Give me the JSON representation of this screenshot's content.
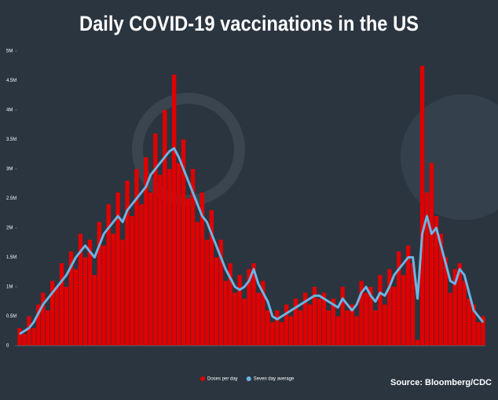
{
  "chart_data": {
    "type": "bar-line",
    "title": "Daily COVID-19 vaccinations in the US",
    "source": "Source: Bloomberg/CDC",
    "categories": [
      null,
      null,
      null,
      null,
      null,
      null,
      null,
      null,
      null,
      null,
      null,
      null,
      null,
      null,
      null,
      null,
      null,
      null,
      null,
      null,
      null,
      null,
      null,
      null,
      null,
      null,
      null,
      null,
      null,
      null,
      null,
      null,
      null,
      null,
      null,
      null,
      null,
      null,
      null,
      null,
      null,
      null,
      null,
      null,
      null,
      null,
      null,
      null,
      null,
      null,
      null,
      null,
      null,
      null,
      null,
      null,
      null,
      null,
      null,
      null,
      null,
      null,
      null,
      null,
      null,
      null,
      null,
      null,
      null,
      null,
      null,
      null,
      null,
      null,
      null,
      null,
      null,
      null,
      null,
      null,
      null,
      null,
      null,
      null,
      null,
      null,
      null,
      null,
      null,
      null,
      null,
      null,
      null,
      null,
      null,
      null,
      null,
      null,
      null,
      null
    ],
    "series": [
      {
        "name": "Doses per day",
        "color": "#e00000",
        "type": "bar",
        "values": [
          0.3,
          0.2,
          0.5,
          0.3,
          0.7,
          0.9,
          0.6,
          1.1,
          1.0,
          1.4,
          1.0,
          1.6,
          1.3,
          1.9,
          1.5,
          1.8,
          1.2,
          2.1,
          1.7,
          2.4,
          1.9,
          2.6,
          1.8,
          2.8,
          2.2,
          3.0,
          2.4,
          3.2,
          2.6,
          3.6,
          2.9,
          4.0,
          3.0,
          4.6,
          3.1,
          3.5,
          2.5,
          3.0,
          2.1,
          2.6,
          1.8,
          2.3,
          1.5,
          1.8,
          1.1,
          1.4,
          0.9,
          1.2,
          0.8,
          1.3,
          1.4,
          0.9,
          1.1,
          0.6,
          0.4,
          0.6,
          0.4,
          0.7,
          0.5,
          0.8,
          0.6,
          0.9,
          0.7,
          1.0,
          0.8,
          0.9,
          0.6,
          0.8,
          0.5,
          1.0,
          0.6,
          0.7,
          0.5,
          1.1,
          0.9,
          1.0,
          0.6,
          1.2,
          0.7,
          1.3,
          1.0,
          1.6,
          1.2,
          1.7,
          1.4,
          0.1,
          4.75,
          2.6,
          3.1,
          2.2,
          1.9,
          1.5,
          0.9,
          1.3,
          1.4,
          1.1,
          0.8,
          0.7,
          0.4,
          0.5
        ]
      },
      {
        "name": "Seven day average",
        "color": "#6cb4e4",
        "type": "line",
        "values": [
          0.2,
          0.25,
          0.3,
          0.4,
          0.55,
          0.7,
          0.8,
          0.9,
          1.0,
          1.1,
          1.2,
          1.35,
          1.5,
          1.6,
          1.7,
          1.6,
          1.5,
          1.7,
          1.9,
          2.0,
          2.1,
          2.2,
          2.1,
          2.3,
          2.4,
          2.5,
          2.6,
          2.7,
          2.9,
          3.0,
          3.1,
          3.2,
          3.3,
          3.35,
          3.2,
          3.0,
          2.8,
          2.6,
          2.4,
          2.2,
          2.1,
          1.9,
          1.7,
          1.5,
          1.3,
          1.15,
          1.0,
          0.95,
          1.0,
          1.1,
          1.3,
          1.05,
          0.9,
          0.75,
          0.5,
          0.45,
          0.5,
          0.55,
          0.6,
          0.65,
          0.7,
          0.75,
          0.8,
          0.85,
          0.85,
          0.8,
          0.75,
          0.7,
          0.65,
          0.8,
          0.7,
          0.6,
          0.7,
          0.9,
          1.0,
          0.85,
          0.75,
          0.9,
          0.85,
          1.0,
          1.2,
          1.3,
          1.4,
          1.5,
          1.5,
          0.8,
          1.9,
          2.2,
          1.9,
          2.0,
          1.7,
          1.4,
          1.1,
          1.05,
          1.3,
          1.2,
          0.9,
          0.6,
          0.5,
          0.4
        ]
      }
    ],
    "ylim": [
      0,
      5
    ],
    "yticks": [
      0,
      {
        "value": 0.5,
        "label": "0.5M"
      },
      {
        "value": 1,
        "label": "1M"
      },
      {
        "value": 1.5,
        "label": "1.5M"
      },
      {
        "value": 2,
        "label": "2M"
      },
      {
        "value": 2.5,
        "label": "2.5M"
      },
      {
        "value": 3,
        "label": "3M"
      },
      {
        "value": 3.5,
        "label": "3.5M"
      },
      {
        "value": 4,
        "label": "4M"
      },
      {
        "value": 4.5,
        "label": "4.5M"
      },
      {
        "value": 5,
        "label": "5M"
      }
    ],
    "grid": false
  }
}
